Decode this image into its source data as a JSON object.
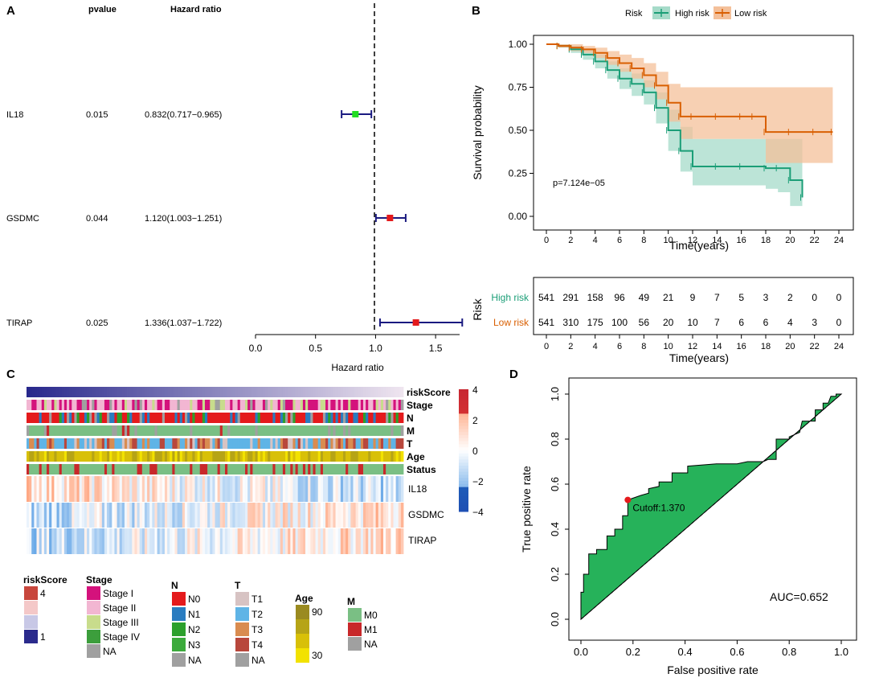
{
  "panels": {
    "a": "A",
    "b": "B",
    "c": "C",
    "d": "D"
  },
  "colors": {
    "high": "#1b9e77",
    "low": "#d95f02",
    "highFill": "#a6dbc9",
    "lowFill": "#f4c09a",
    "roc": "#26b25a",
    "cut": "#e41a1c",
    "fpHigh": "#22dd22",
    "fpLow": "#e41a1c",
    "ci": "#1a1a80"
  },
  "chart_data": [
    {
      "type": "forest",
      "header_pvalue": "pvalue",
      "header_hr": "Hazard ratio",
      "xlabel": "Hazard ratio",
      "xlim": [
        0,
        1.7
      ],
      "xticks": [
        0.0,
        0.5,
        1.0,
        1.5
      ],
      "xtick_labels": [
        "0.0",
        "0.5",
        "1.0",
        "1.5"
      ],
      "reference": 1.0,
      "genes": [
        {
          "name": "IL18",
          "pvalue": "0.015",
          "hr_text": "0.832(0.717−0.965)",
          "hr": 0.832,
          "lo": 0.717,
          "hi": 0.965,
          "color": "#22dd22"
        },
        {
          "name": "GSDMC",
          "pvalue": "0.044",
          "hr_text": "1.120(1.003−1.251)",
          "hr": 1.12,
          "lo": 1.003,
          "hi": 1.251,
          "color": "#e41a1c"
        },
        {
          "name": "TIRAP",
          "pvalue": "0.025",
          "hr_text": "1.336(1.037−1.722)",
          "hr": 1.336,
          "lo": 1.037,
          "hi": 1.722,
          "color": "#e41a1c"
        }
      ]
    },
    {
      "type": "survival",
      "xlabel": "Time(years)",
      "ylabel": "Survival probability",
      "legend_title": "Risk",
      "xlim": [
        0,
        24
      ],
      "ylim": [
        0,
        1
      ],
      "xticks": [
        0,
        2,
        4,
        6,
        8,
        10,
        12,
        14,
        16,
        18,
        20,
        22,
        24
      ],
      "yticks": [
        0,
        0.25,
        0.5,
        0.75,
        1
      ],
      "ytick_labels": [
        "0.00",
        "0.25",
        "0.50",
        "0.75",
        "1.00"
      ],
      "pvalue_label": "p=7.124e−05",
      "series": [
        {
          "name": "High risk",
          "points": [
            [
              0,
              1
            ],
            [
              1,
              0.99
            ],
            [
              2,
              0.97
            ],
            [
              3,
              0.94
            ],
            [
              4,
              0.9
            ],
            [
              5,
              0.85
            ],
            [
              6,
              0.8
            ],
            [
              7,
              0.77
            ],
            [
              8,
              0.72
            ],
            [
              9,
              0.63
            ],
            [
              10,
              0.5
            ],
            [
              11,
              0.38
            ],
            [
              12,
              0.29
            ],
            [
              14,
              0.29
            ],
            [
              16,
              0.29
            ],
            [
              18,
              0.28
            ],
            [
              19,
              0.28
            ],
            [
              20,
              0.21
            ],
            [
              21,
              0.11
            ]
          ],
          "ci_upper": [
            1,
            1,
            0.99,
            0.97,
            0.94,
            0.9,
            0.86,
            0.83,
            0.79,
            0.72,
            0.62,
            0.52,
            0.45,
            0.45,
            0.45,
            0.45,
            0.45,
            0.45,
            0.38
          ],
          "ci_lower": [
            1,
            0.98,
            0.95,
            0.91,
            0.86,
            0.8,
            0.74,
            0.7,
            0.65,
            0.54,
            0.38,
            0.26,
            0.18,
            0.18,
            0.18,
            0.16,
            0.14,
            0.06,
            0.03
          ]
        },
        {
          "name": "Low risk",
          "points": [
            [
              0,
              1
            ],
            [
              1,
              0.99
            ],
            [
              2,
              0.98
            ],
            [
              3,
              0.97
            ],
            [
              4,
              0.95
            ],
            [
              5,
              0.92
            ],
            [
              6,
              0.89
            ],
            [
              7,
              0.86
            ],
            [
              8,
              0.82
            ],
            [
              9,
              0.76
            ],
            [
              10,
              0.66
            ],
            [
              11,
              0.58
            ],
            [
              12,
              0.58
            ],
            [
              14,
              0.58
            ],
            [
              16,
              0.58
            ],
            [
              17,
              0.58
            ],
            [
              18,
              0.49
            ],
            [
              20,
              0.49
            ],
            [
              22,
              0.49
            ],
            [
              23.5,
              0.49
            ]
          ],
          "ci_upper": [
            1,
            1,
            1,
            0.99,
            0.98,
            0.96,
            0.94,
            0.92,
            0.89,
            0.84,
            0.77,
            0.75,
            0.75,
            0.75,
            0.75,
            0.75,
            0.75,
            0.75,
            0.75,
            0.75
          ],
          "ci_lower": [
            1,
            0.98,
            0.96,
            0.95,
            0.92,
            0.88,
            0.84,
            0.8,
            0.75,
            0.68,
            0.55,
            0.45,
            0.45,
            0.45,
            0.45,
            0.45,
            0.31,
            0.31,
            0.31,
            0.31
          ]
        }
      ],
      "risk_table": {
        "title": "Risk",
        "times": [
          0,
          2,
          4,
          6,
          8,
          10,
          12,
          14,
          16,
          18,
          20,
          22,
          24
        ],
        "rows": [
          {
            "name": "High risk",
            "values": [
              541,
              291,
              158,
              96,
              49,
              21,
              9,
              7,
              5,
              3,
              2,
              0,
              0
            ]
          },
          {
            "name": "Low risk",
            "values": [
              541,
              310,
              175,
              100,
              56,
              20,
              10,
              7,
              6,
              6,
              4,
              3,
              0
            ]
          }
        ],
        "xlabel": "Time(years)"
      }
    },
    {
      "type": "heatmap",
      "annotation_rows": [
        "riskScore",
        "Stage",
        "N",
        "M",
        "T",
        "Age",
        "Status"
      ],
      "gene_rows": [
        "IL18",
        "GSDMC",
        "TIRAP"
      ],
      "colorbar_ticks": [
        4,
        2,
        0,
        -2,
        -4
      ],
      "colorbar_labels": [
        "4",
        "2",
        "0",
        "−2",
        "−4"
      ],
      "legends": [
        {
          "title": "riskScore",
          "items": [
            "4",
            "1"
          ],
          "colors": [
            "#c8463c",
            "#f4c8c8",
            "#c8c8e6",
            "#2a2a8c"
          ]
        },
        {
          "title": "Stage",
          "items": [
            "Stage I",
            "Stage II",
            "Stage III",
            "Stage IV",
            "NA"
          ],
          "colors": [
            "#d4127c",
            "#f2b6d2",
            "#c8dc8c",
            "#3c9e3c",
            "#a0a0a0"
          ]
        },
        {
          "title": "N",
          "items": [
            "N0",
            "N1",
            "N2",
            "N3",
            "NA"
          ],
          "colors": [
            "#e41a1c",
            "#2a7cc0",
            "#2ca02c",
            "#3caa3c",
            "#a0a0a0"
          ]
        },
        {
          "title": "T",
          "items": [
            "T1",
            "T2",
            "T3",
            "T4",
            "NA"
          ],
          "colors": [
            "#d7c3c3",
            "#5fb4e6",
            "#d98c50",
            "#b8473c",
            "#a0a0a0"
          ]
        },
        {
          "title": "Age",
          "items": [
            "90",
            "30"
          ],
          "colors": [
            "#9a8a20",
            "#b6a416",
            "#d8c008",
            "#f2e200"
          ]
        },
        {
          "title": "M",
          "items": [
            "M0",
            "M1",
            "NA"
          ],
          "colors": [
            "#7abf84",
            "#c8282a",
            "#a0a0a0"
          ]
        }
      ]
    },
    {
      "type": "roc",
      "xlabel": "False positive rate",
      "ylabel": "True positive rate",
      "xlim": [
        0,
        1
      ],
      "ylim": [
        0,
        1
      ],
      "xticks": [
        0,
        0.2,
        0.4,
        0.6,
        0.8,
        1
      ],
      "xtick_labels": [
        "0.0",
        "0.2",
        "0.4",
        "0.6",
        "0.8",
        "1.0"
      ],
      "yticks": [
        0,
        0.2,
        0.4,
        0.6,
        0.8,
        1
      ],
      "ytick_labels": [
        "0.0",
        "0.2",
        "0.4",
        "0.6",
        "0.8",
        "1.0"
      ],
      "auc_label": "AUC=0.652",
      "cutoff_label": "Cutoff:1.370",
      "cutoff_point": [
        0.18,
        0.53
      ],
      "curve": [
        [
          0,
          0
        ],
        [
          0,
          0.12
        ],
        [
          0.01,
          0.12
        ],
        [
          0.01,
          0.2
        ],
        [
          0.03,
          0.2
        ],
        [
          0.03,
          0.29
        ],
        [
          0.06,
          0.29
        ],
        [
          0.06,
          0.31
        ],
        [
          0.1,
          0.31
        ],
        [
          0.1,
          0.37
        ],
        [
          0.13,
          0.37
        ],
        [
          0.13,
          0.4
        ],
        [
          0.16,
          0.4
        ],
        [
          0.16,
          0.46
        ],
        [
          0.18,
          0.46
        ],
        [
          0.18,
          0.53
        ],
        [
          0.23,
          0.55
        ],
        [
          0.26,
          0.56
        ],
        [
          0.26,
          0.58
        ],
        [
          0.3,
          0.59
        ],
        [
          0.3,
          0.61
        ],
        [
          0.35,
          0.61
        ],
        [
          0.35,
          0.65
        ],
        [
          0.41,
          0.65
        ],
        [
          0.41,
          0.68
        ],
        [
          0.52,
          0.69
        ],
        [
          0.6,
          0.69
        ],
        [
          0.64,
          0.7
        ],
        [
          0.7,
          0.7
        ],
        [
          0.72,
          0.71
        ],
        [
          0.75,
          0.71
        ],
        [
          0.75,
          0.8
        ],
        [
          0.8,
          0.8
        ],
        [
          0.8,
          0.81
        ],
        [
          0.82,
          0.82
        ],
        [
          0.84,
          0.83
        ],
        [
          0.85,
          0.88
        ],
        [
          0.9,
          0.88
        ],
        [
          0.9,
          0.93
        ],
        [
          0.93,
          0.93
        ],
        [
          0.93,
          0.96
        ],
        [
          0.95,
          0.96
        ],
        [
          0.96,
          0.99
        ],
        [
          0.98,
          0.99
        ],
        [
          0.98,
          1
        ],
        [
          1,
          1
        ]
      ]
    }
  ]
}
